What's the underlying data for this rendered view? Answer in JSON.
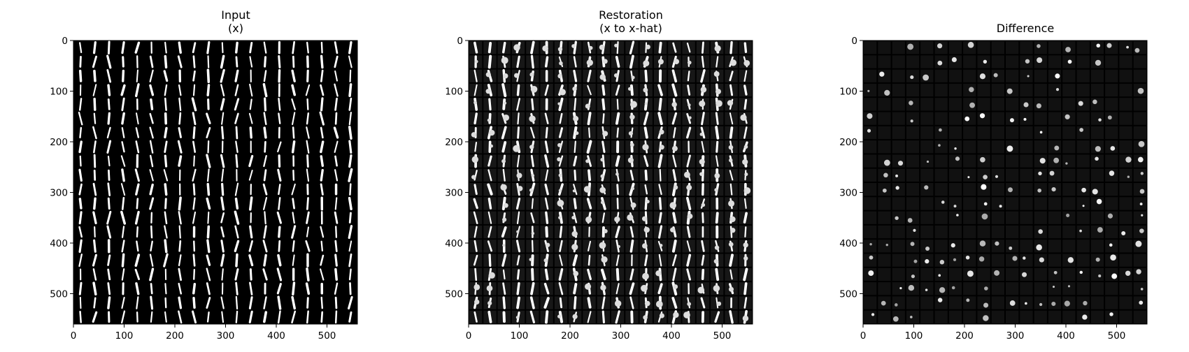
{
  "panels": [
    {
      "id": "input",
      "title_lines": [
        "Input",
        "(x)"
      ],
      "image_kind": "input-digits",
      "image_description_icon": "digit-grid-icon"
    },
    {
      "id": "restoration",
      "title_lines": [
        "Restoration",
        "(x to x-hat)"
      ],
      "image_kind": "restoration-digits",
      "image_description_icon": "digit-grid-icon"
    },
    {
      "id": "difference",
      "title_lines": [
        "Difference"
      ],
      "image_kind": "difference-map",
      "image_description_icon": "digit-grid-icon"
    }
  ],
  "axis": {
    "x_ticks": [
      "0",
      "100",
      "200",
      "300",
      "400",
      "500"
    ],
    "y_ticks": [
      "0",
      "100",
      "200",
      "300",
      "400",
      "500"
    ],
    "tick_values": [
      0,
      100,
      200,
      300,
      400,
      500
    ],
    "extent": [
      0,
      560
    ],
    "grid_cells": 20
  },
  "colors": {
    "background": "#000000",
    "stroke": "#ffffff",
    "axes": "#000000"
  }
}
